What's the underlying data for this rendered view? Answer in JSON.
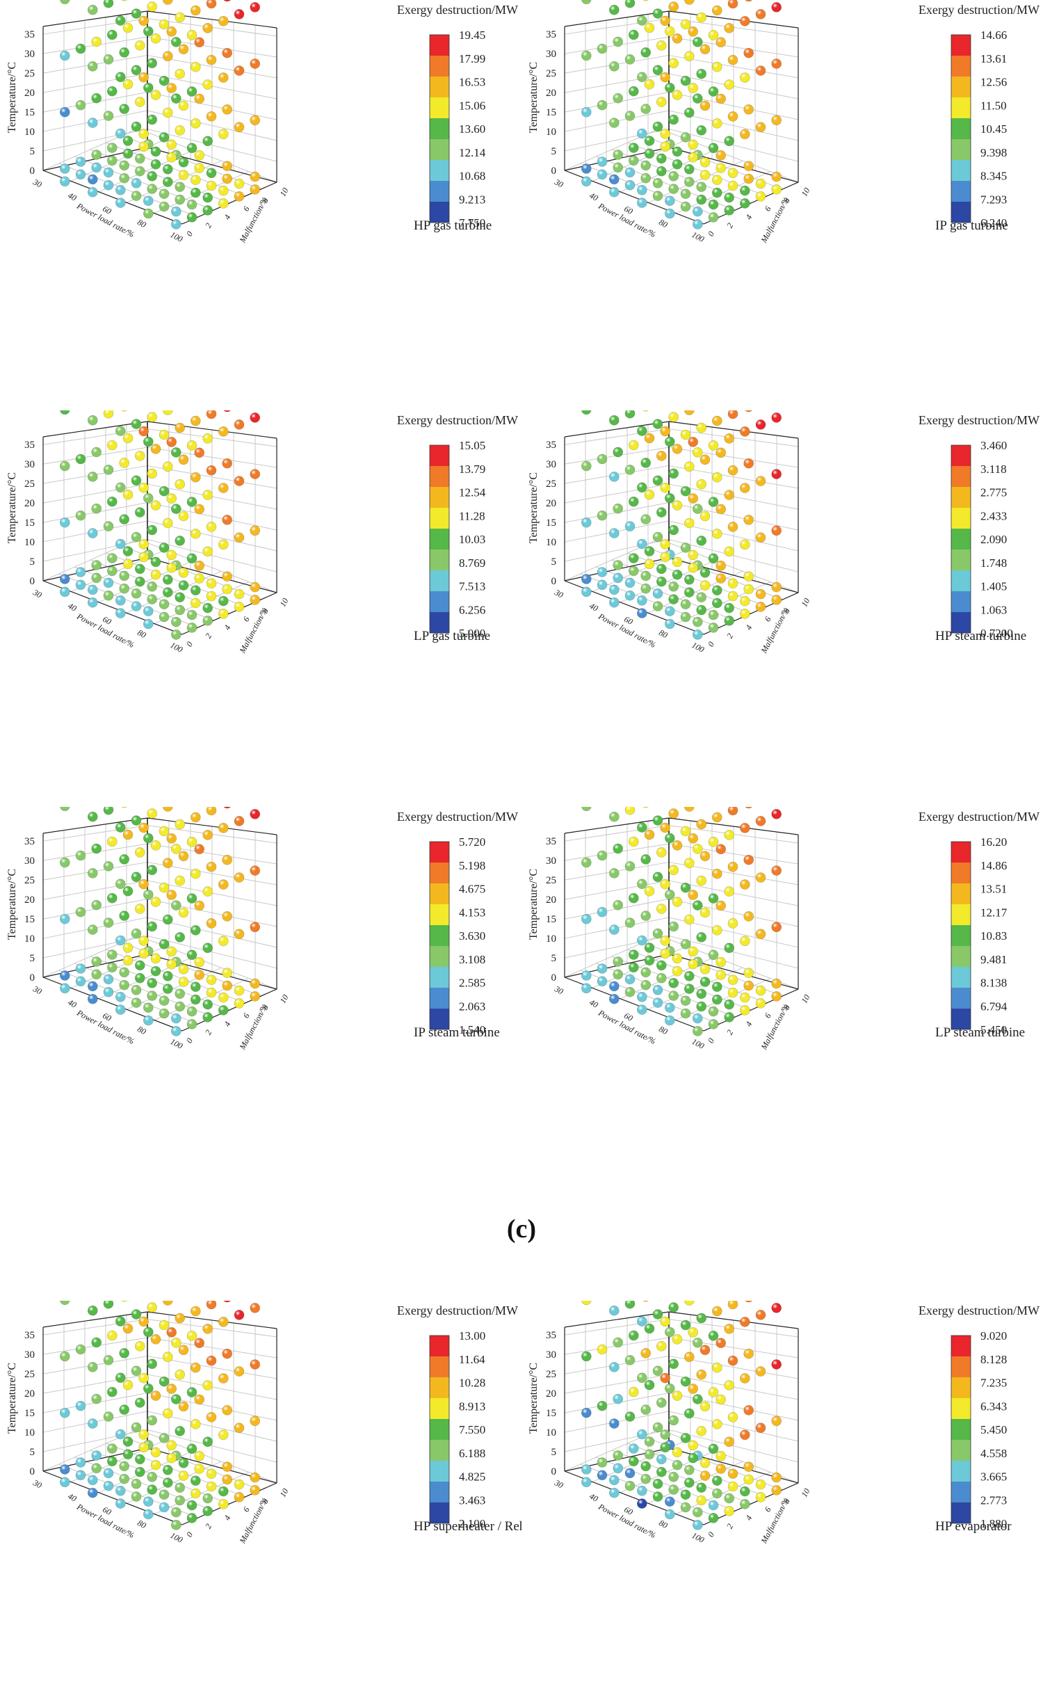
{
  "section_label": "(c)",
  "chart_data": [
    {
      "type": "scatter",
      "title": "HP gas turbine",
      "colorbar_title": "Exergy destruction/MW",
      "colorbar_ticks": [
        "19.45",
        "17.99",
        "16.53",
        "15.06",
        "13.60",
        "12.14",
        "10.68",
        "9.213",
        "7.750"
      ],
      "zlabel": "Temperature/°C",
      "xlabel": "Power load rate/%",
      "ylabel": "Malfunction/%",
      "z_ticks": [
        "35",
        "30",
        "25",
        "20",
        "15",
        "10",
        "5",
        "0"
      ],
      "x_ticks": [
        "30",
        "40",
        "60",
        "80",
        "100"
      ],
      "y_ticks": [
        "0",
        "2",
        "4",
        "6",
        "8",
        "10"
      ],
      "x_range": [
        30,
        100
      ],
      "y_range": [
        0,
        10
      ],
      "z_range": [
        -5,
        35
      ],
      "value_range": [
        7.75,
        19.45
      ],
      "spread": 0.0
    },
    {
      "type": "scatter",
      "title": "IP gas turbine",
      "colorbar_title": "Exergy destruction/MW",
      "colorbar_ticks": [
        "14.66",
        "13.61",
        "12.56",
        "11.50",
        "10.45",
        "9.398",
        "8.345",
        "7.293",
        "6.240"
      ],
      "zlabel": "Temperature/°C",
      "xlabel": "Power load rate/%",
      "ylabel": "Malfunction/%",
      "z_ticks": [
        "35",
        "30",
        "25",
        "20",
        "15",
        "10",
        "5",
        "0"
      ],
      "x_ticks": [
        "30",
        "40",
        "60",
        "80",
        "100"
      ],
      "y_ticks": [
        "0",
        "2",
        "4",
        "6",
        "8",
        "10"
      ],
      "x_range": [
        30,
        100
      ],
      "y_range": [
        0,
        10
      ],
      "z_range": [
        -5,
        35
      ],
      "value_range": [
        6.24,
        14.66
      ],
      "spread": 0.0
    },
    {
      "type": "scatter",
      "title": "LP gas turbine",
      "colorbar_title": "Exergy destruction/MW",
      "colorbar_ticks": [
        "15.05",
        "13.79",
        "12.54",
        "11.28",
        "10.03",
        "8.769",
        "7.513",
        "6.256",
        "5.000"
      ],
      "zlabel": "Temperature/°C",
      "xlabel": "Power load rate/%",
      "ylabel": "Malfunction/%",
      "z_ticks": [
        "35",
        "30",
        "25",
        "20",
        "15",
        "10",
        "5",
        "0"
      ],
      "x_ticks": [
        "30",
        "40",
        "60",
        "80",
        "100"
      ],
      "y_ticks": [
        "0",
        "2",
        "4",
        "6",
        "8",
        "10"
      ],
      "x_range": [
        30,
        100
      ],
      "y_range": [
        0,
        10
      ],
      "z_range": [
        -5,
        35
      ],
      "value_range": [
        5.0,
        15.05
      ],
      "spread": 0.0
    },
    {
      "type": "scatter",
      "title": "HP steam turbine",
      "colorbar_title": "Exergy destruction/MW",
      "colorbar_ticks": [
        "3.460",
        "3.118",
        "2.775",
        "2.433",
        "2.090",
        "1.748",
        "1.405",
        "1.063",
        "0.7200"
      ],
      "zlabel": "Temperature/°C",
      "xlabel": "Power load rate/%",
      "ylabel": "Malfunction/%",
      "z_ticks": [
        "35",
        "30",
        "25",
        "20",
        "15",
        "10",
        "5",
        "0"
      ],
      "x_ticks": [
        "30",
        "40",
        "60",
        "80",
        "100"
      ],
      "y_ticks": [
        "0",
        "2",
        "4",
        "6",
        "8",
        "10"
      ],
      "x_range": [
        30,
        100
      ],
      "y_range": [
        0,
        10
      ],
      "z_range": [
        -5,
        35
      ],
      "value_range": [
        0.72,
        3.46
      ],
      "spread": 0.0
    },
    {
      "type": "scatter",
      "title": "IP steam turbine",
      "colorbar_title": "Exergy destruction/MW",
      "colorbar_ticks": [
        "5.720",
        "5.198",
        "4.675",
        "4.153",
        "3.630",
        "3.108",
        "2.585",
        "2.063",
        "1.540"
      ],
      "zlabel": "Temperature/°C",
      "xlabel": "Power load rate/%",
      "ylabel": "Malfunction/%",
      "z_ticks": [
        "35",
        "30",
        "25",
        "20",
        "15",
        "10",
        "5",
        "0"
      ],
      "x_ticks": [
        "30",
        "40",
        "60",
        "80",
        "100"
      ],
      "y_ticks": [
        "0",
        "2",
        "4",
        "6",
        "8",
        "10"
      ],
      "x_range": [
        30,
        100
      ],
      "y_range": [
        0,
        10
      ],
      "z_range": [
        -5,
        35
      ],
      "value_range": [
        1.54,
        5.72
      ],
      "spread": 0.0
    },
    {
      "type": "scatter",
      "title": "LP steam turbine",
      "colorbar_title": "Exergy destruction/MW",
      "colorbar_ticks": [
        "16.20",
        "14.86",
        "13.51",
        "12.17",
        "10.83",
        "9.481",
        "8.138",
        "6.794",
        "5.450"
      ],
      "zlabel": "Temperature/°C",
      "xlabel": "Power load rate/%",
      "ylabel": "Malfunction/%",
      "z_ticks": [
        "35",
        "30",
        "25",
        "20",
        "15",
        "10",
        "5",
        "0"
      ],
      "x_ticks": [
        "30",
        "40",
        "60",
        "80",
        "100"
      ],
      "y_ticks": [
        "0",
        "2",
        "4",
        "6",
        "8",
        "10"
      ],
      "x_range": [
        30,
        100
      ],
      "y_range": [
        0,
        10
      ],
      "z_range": [
        -5,
        35
      ],
      "value_range": [
        5.45,
        16.2
      ],
      "spread": 0.0
    },
    {
      "type": "scatter",
      "title": "HP superheater / Reheater",
      "colorbar_title": "Exergy destruction/MW",
      "colorbar_ticks": [
        "13.00",
        "11.64",
        "10.28",
        "8.913",
        "7.550",
        "6.188",
        "4.825",
        "3.463",
        "2.100"
      ],
      "zlabel": "Temperature/°C",
      "xlabel": "Power load rate/%",
      "ylabel": "Malfunction/%",
      "z_ticks": [
        "35",
        "30",
        "25",
        "20",
        "15",
        "10",
        "5",
        "0"
      ],
      "x_ticks": [
        "30",
        "40",
        "60",
        "80",
        "100"
      ],
      "y_ticks": [
        "0",
        "2",
        "4",
        "6",
        "8",
        "10"
      ],
      "x_range": [
        30,
        100
      ],
      "y_range": [
        0,
        10
      ],
      "z_range": [
        -5,
        35
      ],
      "value_range": [
        2.1,
        13.0
      ],
      "spread": 0.0
    },
    {
      "type": "scatter",
      "title": "HP evaporator",
      "colorbar_title": "Exergy destruction/MW",
      "colorbar_ticks": [
        "9.020",
        "8.128",
        "7.235",
        "6.343",
        "5.450",
        "4.558",
        "3.665",
        "2.773",
        "1.880"
      ],
      "zlabel": "Temperature/°C",
      "xlabel": "Power load rate/%",
      "ylabel": "Malfunction/%",
      "z_ticks": [
        "35",
        "30",
        "25",
        "20",
        "15",
        "10",
        "5",
        "0"
      ],
      "x_ticks": [
        "30",
        "40",
        "60",
        "80",
        "100"
      ],
      "y_ticks": [
        "0",
        "2",
        "4",
        "6",
        "8",
        "10"
      ],
      "x_range": [
        30,
        100
      ],
      "y_range": [
        0,
        10
      ],
      "z_range": [
        -5,
        35
      ],
      "value_range": [
        1.88,
        9.02
      ],
      "spread": 0.25
    }
  ],
  "colors": {
    "colorbar": [
      "#e8262b",
      "#f07a28",
      "#f4b81f",
      "#f2ea2a",
      "#55b848",
      "#88c868",
      "#6cc9d8",
      "#4a8ccf",
      "#2c47a4"
    ],
    "grid": "#c8c8c8",
    "axis": "#222222"
  }
}
